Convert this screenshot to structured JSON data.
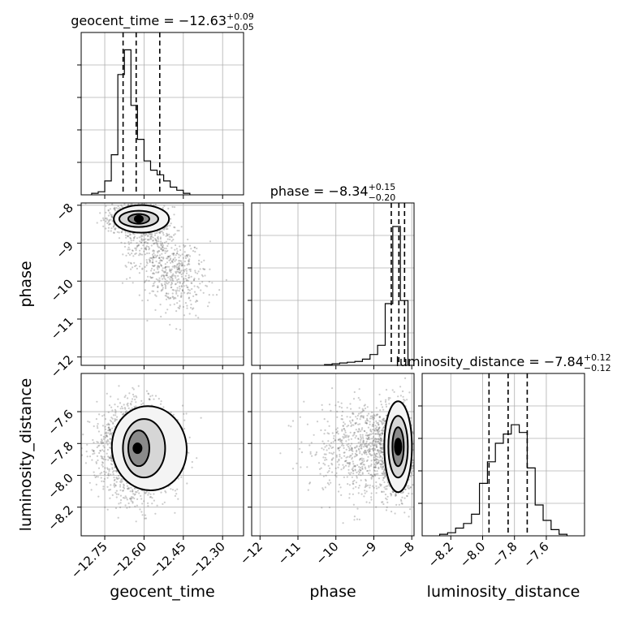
{
  "chart_data": {
    "type": "corner",
    "parameters": [
      "geocent_time",
      "phase",
      "luminosity_distance"
    ],
    "xlabels": [
      "geocent_time",
      "phase",
      "luminosity_distance"
    ],
    "ylabels": [
      "",
      "phase",
      "luminosity_distance"
    ],
    "titles": [
      {
        "param": "geocent_time",
        "text": "geocent_time = −12.63",
        "plus": "+0.09",
        "minus": "−0.05",
        "median": -12.63,
        "q_low": -12.68,
        "q_high": -12.54
      },
      {
        "param": "phase",
        "text": "phase = −8.34",
        "plus": "+0.15",
        "minus": "−0.20",
        "median": -8.34,
        "q_low": -8.54,
        "q_high": -8.19
      },
      {
        "param": "luminosity_distance",
        "text": "luminosity_distance = −7.84",
        "plus": "+0.12",
        "minus": "−0.12",
        "median": -7.84,
        "q_low": -7.96,
        "q_high": -7.72
      }
    ],
    "ranges": {
      "geocent_time": [
        -12.84,
        -12.22
      ],
      "phase": [
        -12.22,
        -7.94
      ],
      "luminosity_distance": [
        -8.38,
        -7.36
      ]
    },
    "ticks": {
      "geocent_time": [
        -12.75,
        -12.6,
        -12.45,
        -12.3
      ],
      "phase": [
        -12,
        -11,
        -10,
        -9,
        -8
      ],
      "luminosity_distance": [
        -8.2,
        -8.0,
        -7.8,
        -7.6
      ]
    },
    "ticklabels": {
      "geocent_time": [
        "−12.75",
        "−12.60",
        "−12.45",
        "−12.30"
      ],
      "phase": [
        "−12",
        "−11",
        "−10",
        "−9",
        "−8"
      ],
      "luminosity_distance": [
        "−8.2",
        "−8.0",
        "−7.8",
        "−7.6"
      ]
    },
    "hist_geocent_time": [
      0.01,
      0.02,
      0.09,
      0.26,
      0.78,
      0.94,
      0.58,
      0.36,
      0.22,
      0.16,
      0.13,
      0.09,
      0.05,
      0.03,
      0.01
    ],
    "hist_phase": [
      0.005,
      0.01,
      0.015,
      0.02,
      0.025,
      0.04,
      0.07,
      0.13,
      0.4,
      0.9,
      0.42
    ],
    "hist_phase_start": -10.3,
    "hist_phase_width": 0.2,
    "hist_luminosity_distance": [
      0.01,
      0.02,
      0.05,
      0.08,
      0.14,
      0.34,
      0.48,
      0.6,
      0.66,
      0.72,
      0.67,
      0.44,
      0.2,
      0.1,
      0.04,
      0.01
    ],
    "grid": true
  }
}
